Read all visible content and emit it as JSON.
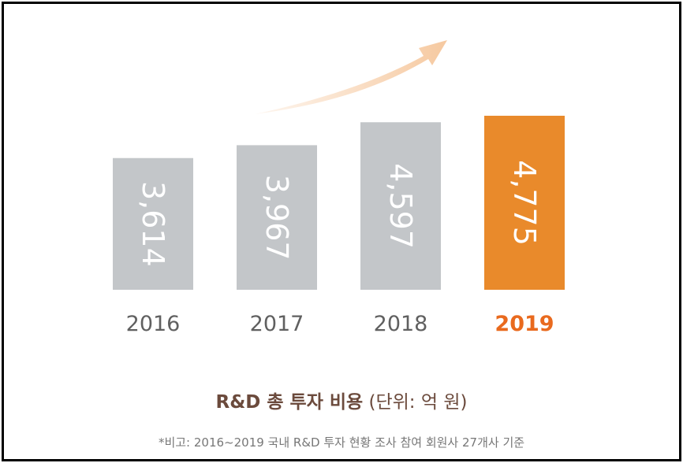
{
  "chart_data": {
    "type": "bar",
    "categories": [
      "2016",
      "2017",
      "2018",
      "2019"
    ],
    "values": [
      3614,
      3967,
      4597,
      4775
    ],
    "value_labels": [
      "3,614",
      "3,967",
      "4,597",
      "4,775"
    ],
    "title": "R&D 총 투자 비용",
    "title_unit": "(단위: 억 원)",
    "note": "*비고: 2016~2019 국내 R&D 투자 현황 조사 참여 회원사 27개사 기준",
    "xlabel": "",
    "ylabel": "",
    "ylim": [
      0,
      4775
    ],
    "grid": false,
    "legend": "none",
    "colors": {
      "bar": "#c3c6c9",
      "highlight_bar": "#e98a2b",
      "category_text": "#606060",
      "highlight_text": "#e96a1e",
      "arrow": "#f6c9a0",
      "title": "#6b4a3c",
      "note": "#777777"
    },
    "highlight_index": 3
  }
}
